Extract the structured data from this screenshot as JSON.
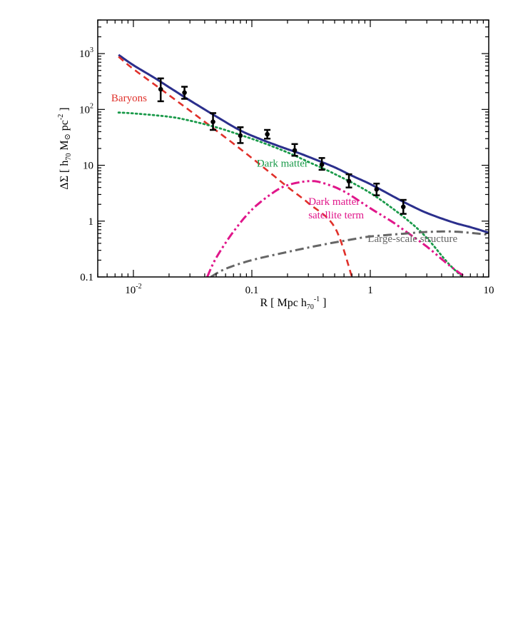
{
  "chart_data": {
    "type": "line",
    "scale": {
      "x": "log",
      "y": "log"
    },
    "xlim": [
      0.005,
      10
    ],
    "ylim": [
      0.1,
      4000
    ],
    "grid": false,
    "xlabel": {
      "prefix": "R  [ Mpc  h",
      "sub": "70",
      "sup": "-1",
      "suffix": " ]"
    },
    "ylabel": {
      "prefix": "ΔΣ   [  h",
      "sub": "70",
      "mid": "  M",
      "sun": "⊙",
      "mid2": "  pc",
      "sup": "-2",
      "suffix": "  ]"
    },
    "x_ticks": [
      {
        "value": 0.01,
        "base": "10",
        "exp": "-2"
      },
      {
        "value": 0.1,
        "label": "0.1"
      },
      {
        "value": 1,
        "label": "1"
      },
      {
        "value": 10,
        "label": "10"
      }
    ],
    "y_ticks": [
      {
        "value": 0.1,
        "label": "0.1"
      },
      {
        "value": 1,
        "label": "1"
      },
      {
        "value": 10,
        "label": "10"
      },
      {
        "value": 100,
        "base": "10",
        "exp": "2"
      },
      {
        "value": 1000,
        "base": "10",
        "exp": "3"
      }
    ],
    "series": [
      {
        "key": "total",
        "color": "#2b2f8c",
        "style": "solid",
        "x": [
          0.0075,
          0.01,
          0.015,
          0.02,
          0.03,
          0.05,
          0.08,
          0.12,
          0.18,
          0.25,
          0.35,
          0.5,
          0.7,
          1.0,
          1.5,
          2.0,
          3.0,
          5.0,
          7.0,
          10.0
        ],
        "y": [
          950,
          620,
          370,
          250,
          145,
          75,
          42,
          29,
          21,
          16.5,
          12.5,
          9.2,
          6.5,
          4.6,
          2.9,
          2.1,
          1.4,
          0.95,
          0.78,
          0.62
        ]
      },
      {
        "key": "baryons",
        "name": "Baryons",
        "color": "#e0302a",
        "style": "dashed",
        "x": [
          0.0075,
          0.01,
          0.02,
          0.05,
          0.1,
          0.2,
          0.3,
          0.5,
          0.7
        ],
        "y": [
          880,
          530,
          180,
          42,
          13.5,
          4.1,
          2.1,
          0.78,
          0.1
        ]
      },
      {
        "key": "dark_matter",
        "name": "Dark matter",
        "color": "#1a9a4a",
        "style": "dotted",
        "x": [
          0.0075,
          0.01,
          0.02,
          0.03,
          0.05,
          0.08,
          0.12,
          0.2,
          0.3,
          0.5,
          1.0,
          2.0,
          3.0,
          4.5,
          6.0
        ],
        "y": [
          88,
          85,
          74,
          63,
          48,
          35,
          26,
          17,
          11.5,
          7,
          3.2,
          1.1,
          0.5,
          0.18,
          0.1
        ]
      },
      {
        "key": "satellite",
        "name": "Dark matter satellite term",
        "color": "#e0168a",
        "style": "dash-dot-dot",
        "x": [
          0.042,
          0.05,
          0.07,
          0.1,
          0.15,
          0.2,
          0.3,
          0.4,
          0.6,
          1.0,
          1.5,
          2.0,
          3.0,
          4.5,
          6.3
        ],
        "y": [
          0.1,
          0.22,
          0.65,
          1.6,
          3.2,
          4.4,
          5.2,
          4.8,
          3.4,
          1.7,
          1.0,
          0.65,
          0.35,
          0.17,
          0.1
        ]
      },
      {
        "key": "lss",
        "name": "Large-scale structure",
        "color": "#666666",
        "style": "dash-dot",
        "x": [
          0.045,
          0.06,
          0.1,
          0.2,
          0.4,
          0.7,
          1.0,
          2.0,
          3.0,
          5.0,
          8.0,
          10.0
        ],
        "y": [
          0.1,
          0.14,
          0.2,
          0.28,
          0.38,
          0.47,
          0.53,
          0.6,
          0.64,
          0.65,
          0.6,
          0.57
        ]
      }
    ],
    "points": {
      "x": [
        0.017,
        0.027,
        0.047,
        0.08,
        0.135,
        0.23,
        0.39,
        0.66,
        1.13,
        1.9
      ],
      "y": [
        230,
        200,
        60,
        34,
        36,
        18.5,
        10.3,
        5.2,
        3.7,
        1.8
      ],
      "ylow": [
        140,
        155,
        43,
        25,
        30,
        14.8,
        8.3,
        4.0,
        2.9,
        1.35
      ],
      "yhigh": [
        360,
        255,
        86,
        48,
        43,
        24,
        13.5,
        6.9,
        4.7,
        2.4
      ],
      "color": "#000000"
    },
    "annotations": [
      {
        "text": "Baryons",
        "color": "#e0302a",
        "x": 0.0065,
        "y": 140
      },
      {
        "text": "Dark matter",
        "color": "#1a9a4a",
        "x": 0.11,
        "y": 9.4
      },
      {
        "text": "Dark matter",
        "color": "#e0168a",
        "x": 0.3,
        "y": 1.95
      },
      {
        "text": "satellite term",
        "color": "#e0168a",
        "x": 0.3,
        "y": 1.12
      },
      {
        "text": "Large-scale structure",
        "color": "#666666",
        "x": 0.95,
        "y": 0.42
      }
    ]
  }
}
